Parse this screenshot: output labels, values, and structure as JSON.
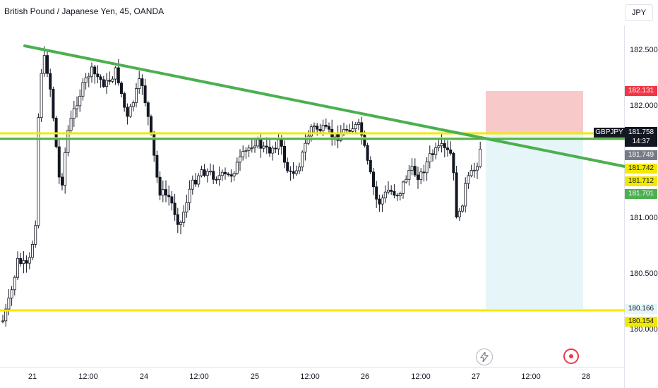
{
  "header": {
    "title": "British Pound / Japanese Yen, 45, OANDA",
    "currency": "JPY"
  },
  "price_axis": {
    "ticks": [
      "182.500",
      "182.000",
      "181.000",
      "180.500",
      "180.000"
    ]
  },
  "time_axis": {
    "ticks": [
      "21",
      "12:00",
      "24",
      "12:00",
      "25",
      "12:00",
      "26",
      "12:00",
      "27",
      "12:00",
      "28"
    ]
  },
  "tags": {
    "target": "182.131",
    "symbol": "GBPJPY",
    "last_price": "181.758",
    "countdown": "14:37",
    "level_1": "181.749",
    "level_2": "181.742",
    "level_3": "181.712",
    "level_4": "181.701",
    "stop_1": "180.166",
    "stop_2": "180.154"
  },
  "colors": {
    "up": "#089981",
    "candle": "#131722",
    "trend": "#4caf50",
    "level": "#f2e900",
    "risk": "#f8c9c9",
    "reward": "#e6f6f8"
  },
  "icons": {
    "bolt": "lightning-icon",
    "record": "record-icon"
  }
}
